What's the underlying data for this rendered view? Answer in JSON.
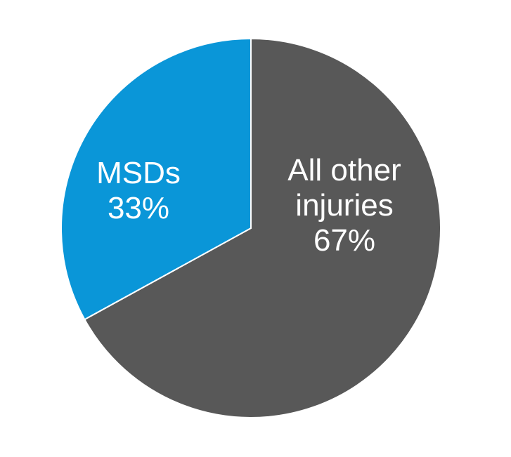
{
  "chart_data": {
    "type": "pie",
    "categories": [
      "All other injuries",
      "MSDs"
    ],
    "values": [
      67,
      33
    ],
    "value_labels": [
      "67%",
      "33%"
    ],
    "colors": [
      "#585858",
      "#0a96d8"
    ]
  }
}
